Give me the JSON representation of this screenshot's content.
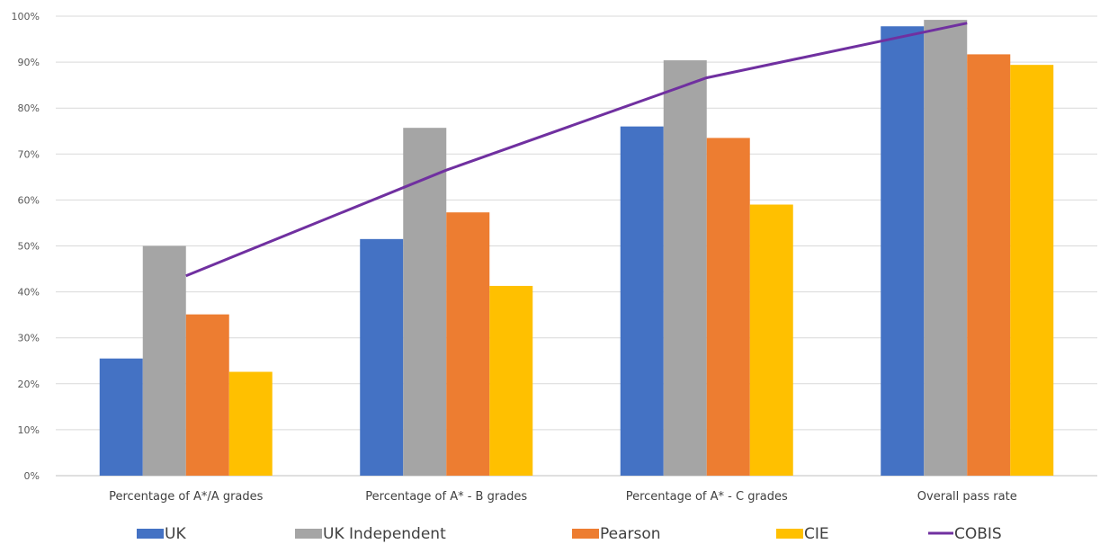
{
  "chart_data": {
    "type": "bar",
    "categories": [
      "Percentage of A*/A grades",
      "Percentage of A* - B grades",
      "Percentage of A* - C grades",
      "Overall pass rate"
    ],
    "series": [
      {
        "name": "UK",
        "type": "bar",
        "color": "#4472C4",
        "values": [
          25.5,
          51.5,
          76,
          97.8
        ]
      },
      {
        "name": "UK Independent",
        "type": "bar",
        "color": "#A5A5A5",
        "values": [
          50,
          75.7,
          90.4,
          99.2
        ]
      },
      {
        "name": "Pearson",
        "type": "bar",
        "color": "#ED7D31",
        "values": [
          35.1,
          57.3,
          73.5,
          91.7
        ]
      },
      {
        "name": "CIE",
        "type": "bar",
        "color": "#FFC000",
        "values": [
          22.6,
          41.3,
          59,
          89.4
        ]
      },
      {
        "name": "COBIS",
        "type": "line",
        "color": "#7030A0",
        "values": [
          43.5,
          66.5,
          86.6,
          98.5
        ]
      }
    ],
    "y_ticks": [
      "0%",
      "10%",
      "20%",
      "30%",
      "40%",
      "50%",
      "60%",
      "70%",
      "80%",
      "90%",
      "100%"
    ],
    "ylim": [
      0,
      100
    ],
    "grid": true,
    "legend_position": "bottom"
  }
}
